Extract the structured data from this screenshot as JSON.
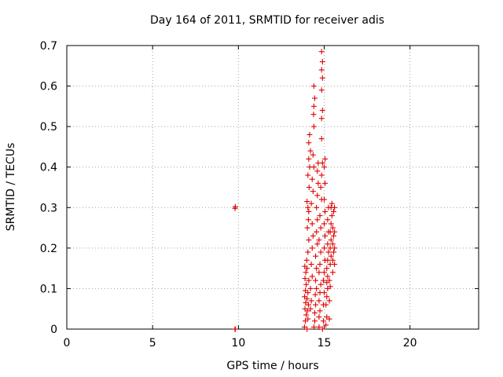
{
  "chart_data": {
    "type": "scatter",
    "title": "Day 164 of 2011, SRMTID for receiver adis",
    "xlabel": "GPS time / hours",
    "ylabel": "SRMTID / TECUs",
    "xlim": [
      0,
      24
    ],
    "ylim": [
      0,
      0.7
    ],
    "xticks": [
      "0",
      "5",
      "10",
      "15",
      "20"
    ],
    "yticks": [
      "0",
      "0.1",
      "0.2",
      "0.3",
      "0.4",
      "0.5",
      "0.6",
      "0.7"
    ],
    "grid": true,
    "marker": "+",
    "color": "#e00000",
    "series": [
      {
        "points": [
          [
            9.8,
            0.298
          ],
          [
            9.82,
            0.302
          ],
          [
            9.8,
            0.0
          ],
          [
            9.82,
            0.0
          ],
          [
            13.85,
            0.005
          ],
          [
            13.9,
            0.02
          ],
          [
            13.95,
            0.035
          ],
          [
            13.88,
            0.05
          ],
          [
            13.92,
            0.065
          ],
          [
            13.86,
            0.08
          ],
          [
            13.9,
            0.095
          ],
          [
            13.95,
            0.11
          ],
          [
            13.88,
            0.125
          ],
          [
            13.93,
            0.14
          ],
          [
            13.87,
            0.155
          ],
          [
            13.98,
            0.17
          ],
          [
            14.0,
            0.0
          ],
          [
            14.05,
            0.025
          ],
          [
            14.02,
            0.045
          ],
          [
            14.08,
            0.06
          ],
          [
            14.0,
            0.075
          ],
          [
            14.05,
            0.09
          ],
          [
            14.1,
            0.12
          ],
          [
            14.0,
            0.15
          ],
          [
            14.05,
            0.19
          ],
          [
            14.1,
            0.22
          ],
          [
            14.02,
            0.25
          ],
          [
            14.08,
            0.27
          ],
          [
            14.05,
            0.3
          ],
          [
            14.1,
            0.29
          ],
          [
            14.0,
            0.315
          ],
          [
            14.12,
            0.35
          ],
          [
            14.05,
            0.38
          ],
          [
            14.15,
            0.4
          ],
          [
            14.1,
            0.42
          ],
          [
            14.2,
            0.44
          ],
          [
            14.1,
            0.46
          ],
          [
            14.15,
            0.48
          ],
          [
            14.2,
            0.05
          ],
          [
            14.25,
            0.07
          ],
          [
            14.2,
            0.1
          ],
          [
            14.3,
            0.13
          ],
          [
            14.25,
            0.16
          ],
          [
            14.3,
            0.2
          ],
          [
            14.35,
            0.23
          ],
          [
            14.3,
            0.26
          ],
          [
            14.25,
            0.31
          ],
          [
            14.35,
            0.34
          ],
          [
            14.3,
            0.37
          ],
          [
            14.4,
            0.4
          ],
          [
            14.35,
            0.43
          ],
          [
            14.4,
            0.5
          ],
          [
            14.38,
            0.53
          ],
          [
            14.4,
            0.55
          ],
          [
            14.45,
            0.57
          ],
          [
            14.4,
            0.6
          ],
          [
            14.4,
            0.005
          ],
          [
            14.45,
            0.02
          ],
          [
            14.45,
            0.04
          ],
          [
            14.5,
            0.06
          ],
          [
            14.48,
            0.085
          ],
          [
            14.55,
            0.1
          ],
          [
            14.5,
            0.12
          ],
          [
            14.55,
            0.15
          ],
          [
            14.5,
            0.18
          ],
          [
            14.6,
            0.21
          ],
          [
            14.55,
            0.24
          ],
          [
            14.6,
            0.27
          ],
          [
            14.55,
            0.3
          ],
          [
            14.6,
            0.33
          ],
          [
            14.65,
            0.36
          ],
          [
            14.6,
            0.39
          ],
          [
            14.65,
            0.41
          ],
          [
            14.7,
            0.005
          ],
          [
            14.7,
            0.03
          ],
          [
            14.75,
            0.045
          ],
          [
            14.7,
            0.07
          ],
          [
            14.75,
            0.09
          ],
          [
            14.8,
            0.11
          ],
          [
            14.7,
            0.14
          ],
          [
            14.75,
            0.16
          ],
          [
            14.8,
            0.19
          ],
          [
            14.7,
            0.22
          ],
          [
            14.8,
            0.25
          ],
          [
            14.75,
            0.28
          ],
          [
            14.85,
            0.32
          ],
          [
            14.8,
            0.35
          ],
          [
            14.85,
            0.38
          ],
          [
            14.9,
            0.41
          ],
          [
            14.85,
            0.47
          ],
          [
            14.85,
            0.52
          ],
          [
            14.9,
            0.54
          ],
          [
            14.85,
            0.59
          ],
          [
            14.9,
            0.62
          ],
          [
            14.85,
            0.64
          ],
          [
            14.9,
            0.66
          ],
          [
            14.85,
            0.685
          ],
          [
            14.9,
            0.0
          ],
          [
            14.95,
            0.02
          ],
          [
            14.95,
            0.06
          ],
          [
            15.0,
            0.09
          ],
          [
            14.95,
            0.12
          ],
          [
            15.0,
            0.14
          ],
          [
            15.05,
            0.17
          ],
          [
            15.0,
            0.2
          ],
          [
            15.05,
            0.23
          ],
          [
            15.0,
            0.26
          ],
          [
            15.05,
            0.29
          ],
          [
            15.0,
            0.32
          ],
          [
            15.05,
            0.36
          ],
          [
            15.0,
            0.4
          ],
          [
            15.05,
            0.42
          ],
          [
            15.1,
            0.01
          ],
          [
            15.15,
            0.03
          ],
          [
            15.1,
            0.06
          ],
          [
            15.15,
            0.08
          ],
          [
            15.2,
            0.1
          ],
          [
            15.15,
            0.115
          ],
          [
            15.2,
            0.13
          ],
          [
            15.15,
            0.15
          ],
          [
            15.2,
            0.17
          ],
          [
            15.25,
            0.19
          ],
          [
            15.2,
            0.21
          ],
          [
            15.25,
            0.24
          ],
          [
            15.2,
            0.27
          ],
          [
            15.25,
            0.3
          ],
          [
            15.3,
            0.025
          ],
          [
            15.3,
            0.07
          ],
          [
            15.35,
            0.105
          ],
          [
            15.3,
            0.12
          ],
          [
            15.35,
            0.16
          ],
          [
            15.4,
            0.18
          ],
          [
            15.35,
            0.2
          ],
          [
            15.4,
            0.22
          ],
          [
            15.35,
            0.24
          ],
          [
            15.4,
            0.26
          ],
          [
            15.45,
            0.28
          ],
          [
            15.4,
            0.3
          ],
          [
            15.45,
            0.31
          ],
          [
            15.5,
            0.14
          ],
          [
            15.5,
            0.17
          ],
          [
            15.55,
            0.19
          ],
          [
            15.5,
            0.21
          ],
          [
            15.55,
            0.23
          ],
          [
            15.5,
            0.25
          ],
          [
            15.55,
            0.29
          ],
          [
            15.6,
            0.16
          ],
          [
            15.6,
            0.2
          ],
          [
            15.6,
            0.24
          ],
          [
            15.6,
            0.3
          ]
        ]
      }
    ]
  }
}
